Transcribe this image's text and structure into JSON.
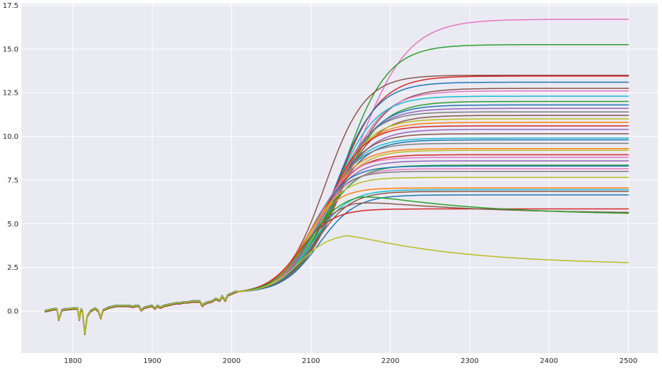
{
  "chart_data": {
    "type": "line",
    "title": "",
    "xlabel": "",
    "ylabel": "",
    "xlim": [
      1735,
      2537
    ],
    "ylim": [
      -2.4,
      17.6
    ],
    "grid": true,
    "legend": "none",
    "background": "#eaeaf2",
    "x_ticks": [
      1800,
      1900,
      2000,
      2100,
      2200,
      2300,
      2400,
      2500
    ],
    "x_tick_labels": [
      "1800",
      "1900",
      "2000",
      "2100",
      "2200",
      "2300",
      "2400",
      "2500"
    ],
    "y_ticks": [
      0.0,
      2.5,
      5.0,
      7.5,
      10.0,
      12.5,
      15.0,
      17.5
    ],
    "y_tick_labels": [
      "0.0",
      "2.5",
      "5.0",
      "7.5",
      "10.0",
      "12.5",
      "15.0",
      "17.5"
    ],
    "palette": [
      "#1f77b4",
      "#ff7f0e",
      "#2ca02c",
      "#d62728",
      "#9467bd",
      "#8c564b",
      "#e377c2",
      "#7f7f7f",
      "#bcbd22",
      "#17becf"
    ],
    "historical": {
      "x": [
        1765,
        1775,
        1780,
        1782,
        1786,
        1790,
        1796,
        1800,
        1806,
        1808,
        1810,
        1812,
        1815,
        1818,
        1822,
        1828,
        1832,
        1835,
        1838,
        1845,
        1850,
        1855,
        1860,
        1865,
        1870,
        1875,
        1880,
        1883,
        1886,
        1890,
        1895,
        1900,
        1903,
        1907,
        1910,
        1915,
        1920,
        1925,
        1930,
        1935,
        1940,
        1945,
        1950,
        1955,
        1960,
        1963,
        1965,
        1970,
        1975,
        1980,
        1985,
        1988,
        1992,
        1995,
        2000,
        2005
      ],
      "y": [
        0.0,
        0.1,
        0.12,
        -0.5,
        0.05,
        0.1,
        0.12,
        0.15,
        0.15,
        -0.5,
        0.1,
        0.0,
        -1.3,
        -0.3,
        0.0,
        0.15,
        0.0,
        -0.4,
        0.05,
        0.2,
        0.25,
        0.3,
        0.3,
        0.3,
        0.3,
        0.25,
        0.3,
        0.3,
        0.05,
        0.2,
        0.25,
        0.3,
        0.15,
        0.3,
        0.2,
        0.3,
        0.35,
        0.4,
        0.45,
        0.45,
        0.5,
        0.5,
        0.55,
        0.55,
        0.55,
        0.3,
        0.4,
        0.5,
        0.55,
        0.7,
        0.6,
        0.85,
        0.6,
        0.9,
        1.0,
        1.1
      ]
    },
    "series": [
      {
        "color": "#e377c2",
        "final": 16.7,
        "peak": 16.7,
        "x50": 2155,
        "s": 33
      },
      {
        "color": "#2ca02c",
        "final": 15.25,
        "peak": 15.25,
        "x50": 2140,
        "s": 28
      },
      {
        "color": "#8c564b",
        "final": 13.5,
        "peak": 13.5,
        "x50": 2118,
        "s": 25
      },
      {
        "color": "#d62728",
        "final": 13.45,
        "peak": 13.45,
        "x50": 2133,
        "s": 27
      },
      {
        "color": "#1f77b4",
        "final": 13.1,
        "peak": 13.1,
        "x50": 2130,
        "s": 26
      },
      {
        "color": "#8c564b",
        "final": 12.75,
        "peak": 12.75,
        "x50": 2138,
        "s": 28
      },
      {
        "color": "#e377c2",
        "final": 12.6,
        "peak": 12.6,
        "x50": 2135,
        "s": 27
      },
      {
        "color": "#17becf",
        "final": 12.3,
        "peak": 12.3,
        "x50": 2128,
        "s": 26
      },
      {
        "color": "#2ca02c",
        "final": 12.0,
        "peak": 12.0,
        "x50": 2133,
        "s": 27
      },
      {
        "color": "#1f77b4",
        "final": 11.8,
        "peak": 11.8,
        "x50": 2130,
        "s": 26
      },
      {
        "color": "#9467bd",
        "final": 11.6,
        "peak": 11.6,
        "x50": 2127,
        "s": 26
      },
      {
        "color": "#7f7f7f",
        "final": 11.4,
        "peak": 11.4,
        "x50": 2124,
        "s": 25
      },
      {
        "color": "#8c564b",
        "final": 11.2,
        "peak": 11.2,
        "x50": 2128,
        "s": 26
      },
      {
        "color": "#bcbd22",
        "final": 11.0,
        "peak": 11.0,
        "x50": 2122,
        "s": 25
      },
      {
        "color": "#ff7f0e",
        "final": 10.8,
        "peak": 10.8,
        "x50": 2120,
        "s": 25
      },
      {
        "color": "#d62728",
        "final": 10.6,
        "peak": 10.6,
        "x50": 2118,
        "s": 24
      },
      {
        "color": "#9467bd",
        "final": 10.4,
        "peak": 10.4,
        "x50": 2121,
        "s": 25
      },
      {
        "color": "#8c564b",
        "final": 10.15,
        "peak": 10.15,
        "x50": 2117,
        "s": 24
      },
      {
        "color": "#17becf",
        "final": 9.9,
        "peak": 9.9,
        "x50": 2115,
        "s": 24
      },
      {
        "color": "#1f77b4",
        "final": 9.8,
        "peak": 9.8,
        "x50": 2118,
        "s": 24
      },
      {
        "color": "#7f7f7f",
        "final": 9.6,
        "peak": 9.6,
        "x50": 2112,
        "s": 23
      },
      {
        "color": "#ff7f0e",
        "final": 9.3,
        "peak": 9.3,
        "x50": 2110,
        "s": 23
      },
      {
        "color": "#bcbd22",
        "final": 9.2,
        "peak": 9.2,
        "x50": 2113,
        "s": 23
      },
      {
        "color": "#d62728",
        "final": 8.95,
        "peak": 8.95,
        "x50": 2108,
        "s": 23
      },
      {
        "color": "#e377c2",
        "final": 8.8,
        "peak": 8.8,
        "x50": 2105,
        "s": 22
      },
      {
        "color": "#9467bd",
        "final": 8.6,
        "peak": 8.6,
        "x50": 2107,
        "s": 22
      },
      {
        "color": "#2ca02c",
        "final": 8.35,
        "peak": 8.35,
        "x50": 2110,
        "s": 23
      },
      {
        "color": "#1f77b4",
        "final": 8.3,
        "peak": 8.3,
        "x50": 2100,
        "s": 22
      },
      {
        "color": "#e377c2",
        "final": 8.15,
        "peak": 8.15,
        "x50": 2103,
        "s": 22
      },
      {
        "color": "#7f7f7f",
        "final": 8.0,
        "peak": 8.0,
        "x50": 2098,
        "s": 21
      },
      {
        "color": "#bcbd22",
        "final": 7.65,
        "peak": 7.65,
        "x50": 2098,
        "s": 21
      },
      {
        "color": "#ff7f0e",
        "final": 7.05,
        "peak": 7.05,
        "x50": 2092,
        "s": 20
      },
      {
        "color": "#17becf",
        "final": 6.95,
        "peak": 6.95,
        "x50": 2103,
        "s": 22
      },
      {
        "color": "#8c564b",
        "final": 6.85,
        "peak": 6.85,
        "x50": 2106,
        "s": 22
      },
      {
        "color": "#1f77b4",
        "final": 6.65,
        "peak": 6.65,
        "x50": 2110,
        "s": 23
      },
      {
        "color": "#d62728",
        "final": 5.85,
        "peak": 5.85,
        "x50": 2085,
        "s": 21
      },
      {
        "color": "#8c564b",
        "final": 5.65,
        "peak": 6.4,
        "x50": 2092,
        "s": 21
      },
      {
        "color": "#2ca02c",
        "final": 5.6,
        "peak": 6.8,
        "x50": 2095,
        "s": 22
      },
      {
        "color": "#bcbd22",
        "final": 2.78,
        "peak": 4.48,
        "x50": 2085,
        "s": 20
      }
    ]
  }
}
